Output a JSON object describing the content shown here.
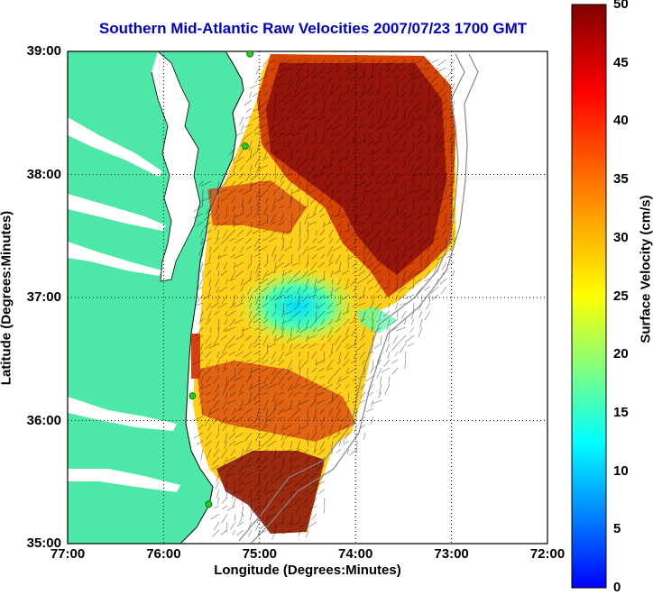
{
  "title": "Southern Mid-Atlantic Raw Velocities 2007/07/23 1700 GMT",
  "map": {
    "xlabel": "Longitude (Degrees:Minutes)",
    "ylabel": "Latitude (Degrees:Minutes)",
    "lon_range": [
      -77,
      -72
    ],
    "lat_range": [
      35,
      39
    ],
    "x_ticks": [
      {
        "label": "77:00",
        "lon": -77
      },
      {
        "label": "76:00",
        "lon": -76
      },
      {
        "label": "75:00",
        "lon": -75
      },
      {
        "label": "74:00",
        "lon": -74
      },
      {
        "label": "73:00",
        "lon": -73
      },
      {
        "label": "72:00",
        "lon": -72
      }
    ],
    "y_ticks": [
      {
        "label": "39:00",
        "lat": 39
      },
      {
        "label": "38:00",
        "lat": 38
      },
      {
        "label": "37:00",
        "lat": 37
      },
      {
        "label": "36:00",
        "lat": 36
      },
      {
        "label": "35:00",
        "lat": 35
      }
    ],
    "grid": "dotted",
    "colors": {
      "land": "#4de8a8",
      "water": "#ffffff",
      "vectors": "#000000",
      "coastline": "#000000",
      "bathymetry": "#888888"
    },
    "stations": [
      {
        "lon": -75.1,
        "lat": 38.98
      },
      {
        "lon": -75.15,
        "lat": 38.23
      },
      {
        "lon": -75.7,
        "lat": 36.2
      },
      {
        "lon": -75.53,
        "lat": 35.32
      }
    ]
  },
  "colorbar": {
    "label": "Surface Velocity (cm/s)",
    "min": 0,
    "max": 50,
    "ticks": [
      "0",
      "5",
      "10",
      "15",
      "20",
      "25",
      "30",
      "35",
      "40",
      "45",
      "50"
    ],
    "colormap": "jet"
  }
}
